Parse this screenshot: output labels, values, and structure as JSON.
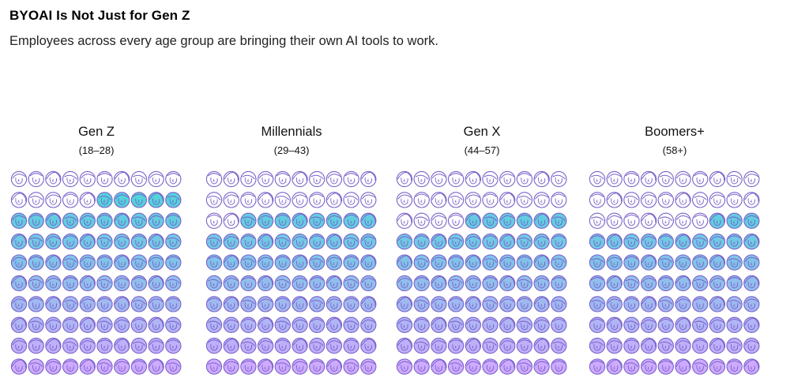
{
  "title": "BYOAI Is Not Just for Gen Z",
  "subtitle": "Employees across every age group are bringing their own AI tools to work.",
  "colors": {
    "outline": "#7b62c9",
    "fill_top": "#2fd3d3",
    "fill_bottom": "#c9a2ff"
  },
  "chart_data": {
    "type": "waffle",
    "unit_icon": "person-face-icon",
    "grid": {
      "rows": 10,
      "cols": 10
    },
    "title": "BYOAI Is Not Just for Gen Z",
    "subtitle": "Employees across every age group are bringing their own AI tools to work.",
    "categories": [
      {
        "name": "Gen Z",
        "age_range": "(18–28)",
        "filled_percent": 85
      },
      {
        "name": "Millennials",
        "age_range": "(29–43)",
        "filled_percent": 78
      },
      {
        "name": "Gen X",
        "age_range": "(44–57)",
        "filled_percent": 76
      },
      {
        "name": "Boomers+",
        "age_range": "(58+)",
        "filled_percent": 73
      }
    ]
  }
}
